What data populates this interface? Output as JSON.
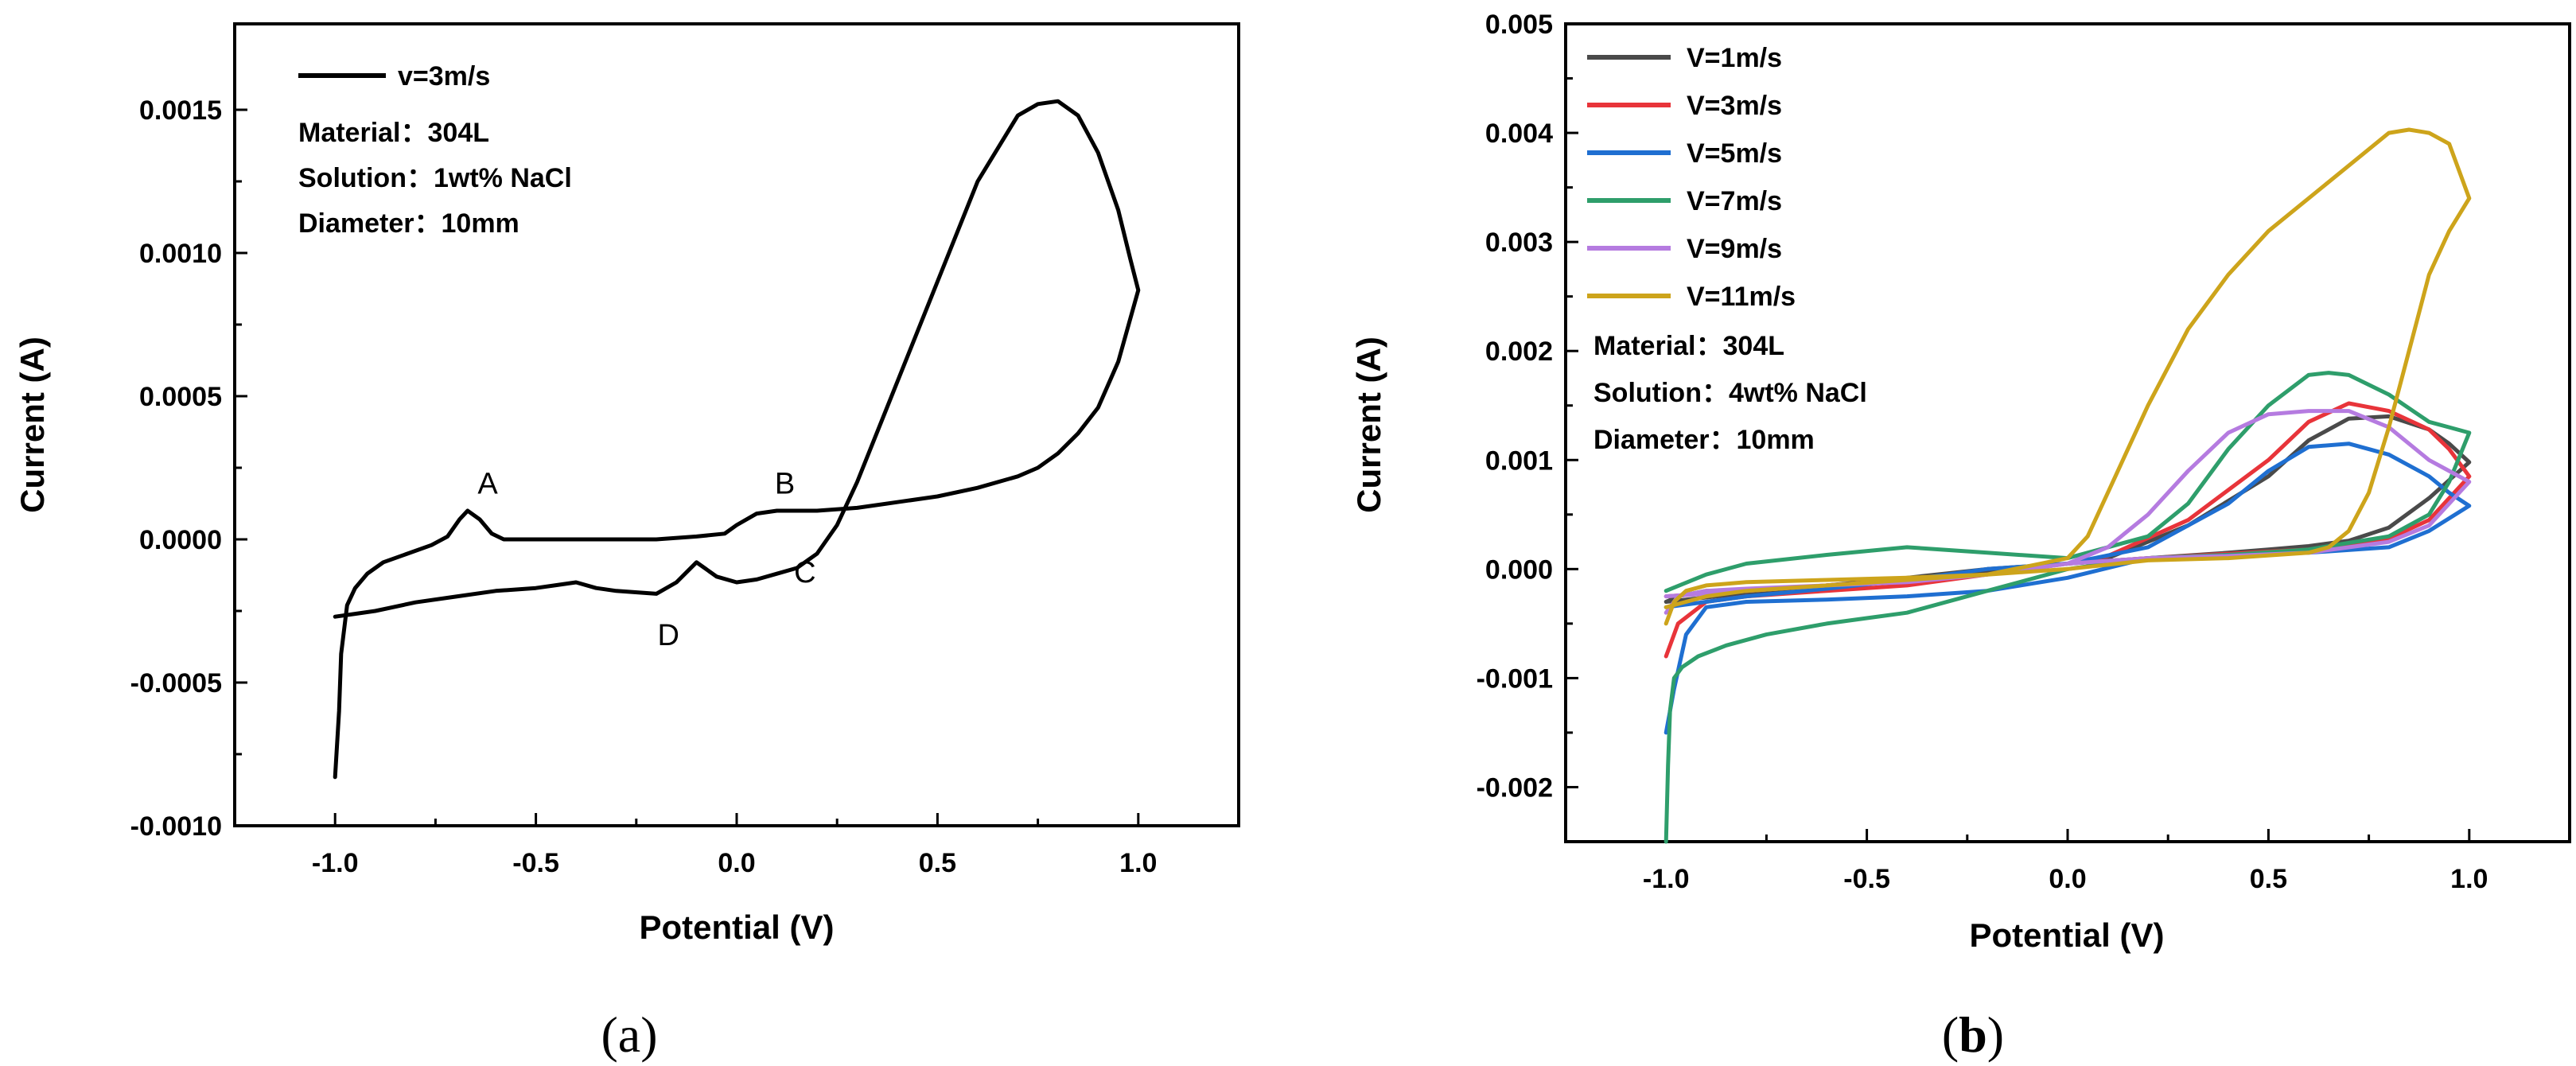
{
  "chart_data": [
    {
      "id": "a",
      "type": "line",
      "panel_label": {
        "open": "(",
        "letter": "a",
        "close": ")"
      },
      "xlabel": "Potential (V)",
      "ylabel": "Current (A)",
      "xlim": [
        -1.25,
        1.25
      ],
      "ylim": [
        -0.001,
        0.0018
      ],
      "xticks": [
        -1.0,
        -0.5,
        0.0,
        0.5,
        1.0
      ],
      "xtick_labels": [
        "-1.0",
        "-0.5",
        "0.0",
        "0.5",
        "1.0"
      ],
      "yticks": [
        -0.001,
        -0.0005,
        0.0,
        0.0005,
        0.001,
        0.0015
      ],
      "ytick_labels": [
        "-0.0010",
        "-0.0005",
        "0.0000",
        "0.0005",
        "0.0010",
        "0.0015"
      ],
      "legend_position": "top-left",
      "series": [
        {
          "name": "v=3m/s",
          "color": "#000000",
          "x": [
            -1.0,
            -0.99,
            -0.985,
            -0.97,
            -0.95,
            -0.92,
            -0.88,
            -0.82,
            -0.76,
            -0.72,
            -0.69,
            -0.67,
            -0.64,
            -0.61,
            -0.58,
            -0.55,
            -0.5,
            -0.4,
            -0.3,
            -0.2,
            -0.1,
            -0.03,
            0.0,
            0.05,
            0.1,
            0.15,
            0.2,
            0.3,
            0.4,
            0.5,
            0.6,
            0.7,
            0.75,
            0.8,
            0.85,
            0.9,
            0.95,
            1.0,
            0.98,
            0.95,
            0.9,
            0.85,
            0.8,
            0.75,
            0.7,
            0.6,
            0.5,
            0.4,
            0.3,
            0.25,
            0.2,
            0.15,
            0.1,
            0.05,
            0.0,
            -0.05,
            -0.1,
            -0.15,
            -0.2,
            -0.3,
            -0.35,
            -0.4,
            -0.45,
            -0.5,
            -0.6,
            -0.7,
            -0.8,
            -0.9,
            -0.95,
            -1.0
          ],
          "y": [
            -0.00083,
            -0.0006,
            -0.0004,
            -0.00023,
            -0.00017,
            -0.00012,
            -8e-05,
            -5e-05,
            -2e-05,
            1e-05,
            7e-05,
            0.0001,
            7e-05,
            2e-05,
            0.0,
            0.0,
            0.0,
            0.0,
            0.0,
            0.0,
            1e-05,
            2e-05,
            5e-05,
            9e-05,
            0.0001,
            0.0001,
            0.0001,
            0.00011,
            0.00013,
            0.00015,
            0.00018,
            0.00022,
            0.00025,
            0.0003,
            0.00037,
            0.00046,
            0.00062,
            0.00087,
            0.00098,
            0.00115,
            0.00135,
            0.00148,
            0.00153,
            0.00152,
            0.00148,
            0.00125,
            0.0009,
            0.00055,
            0.0002,
            5e-05,
            -5e-05,
            -0.0001,
            -0.00012,
            -0.00014,
            -0.00015,
            -0.00013,
            -8e-05,
            -0.00015,
            -0.00019,
            -0.00018,
            -0.00017,
            -0.00015,
            -0.00016,
            -0.00017,
            -0.00018,
            -0.0002,
            -0.00022,
            -0.00025,
            -0.00026,
            -0.00027
          ]
        }
      ],
      "annotations": [
        {
          "text": "A",
          "x": -0.62,
          "y": 0.00016
        },
        {
          "text": "B",
          "x": 0.12,
          "y": 0.00016
        },
        {
          "text": "C",
          "x": 0.17,
          "y": -0.00015
        },
        {
          "text": "D",
          "x": -0.17,
          "y": -0.00037
        }
      ],
      "info_lines": [
        "Material：304L",
        "Solution：1wt% NaCl",
        "Diameter：10mm"
      ]
    },
    {
      "id": "b",
      "type": "line",
      "panel_label": {
        "open": "(",
        "letter": "b",
        "close": ")"
      },
      "xlabel": "Potential (V)",
      "ylabel": "Current (A)",
      "xlim": [
        -1.25,
        1.25
      ],
      "ylim": [
        -0.0025,
        0.005
      ],
      "xticks": [
        -1.0,
        -0.5,
        0.0,
        0.5,
        1.0
      ],
      "xtick_labels": [
        "-1.0",
        "-0.5",
        "0.0",
        "0.5",
        "1.0"
      ],
      "yticks": [
        -0.002,
        -0.001,
        0.0,
        0.001,
        0.002,
        0.003,
        0.004,
        0.005
      ],
      "ytick_labels": [
        "-0.002",
        "-0.001",
        "0.000",
        "0.001",
        "0.002",
        "0.003",
        "0.004",
        "0.005"
      ],
      "legend_position": "top-left",
      "series": [
        {
          "name": "V=1m/s",
          "color": "#4a4a4a",
          "x": [
            -1.0,
            -0.97,
            -0.9,
            -0.8,
            -0.6,
            -0.4,
            -0.2,
            0.0,
            0.2,
            0.4,
            0.5,
            0.6,
            0.7,
            0.8,
            0.9,
            1.0,
            0.95,
            0.9,
            0.8,
            0.7,
            0.6,
            0.5,
            0.3,
            0.1,
            0.0,
            -0.2,
            -0.4,
            -0.6,
            -0.8,
            -1.0
          ],
          "y": [
            -0.0003,
            -0.00025,
            -0.0002,
            -0.0002,
            -0.00015,
            -0.0001,
            -2e-05,
            5e-05,
            0.0001,
            0.00015,
            0.00018,
            0.00021,
            0.00026,
            0.00038,
            0.00065,
            0.00098,
            0.00115,
            0.00128,
            0.0014,
            0.00138,
            0.00118,
            0.00085,
            0.0004,
            0.0001,
            5e-05,
            0.0,
            -8e-05,
            -0.00015,
            -0.00022,
            -0.0003
          ]
        },
        {
          "name": "V=3m/s",
          "color": "#e8343a",
          "x": [
            -1.0,
            -0.97,
            -0.9,
            -0.8,
            -0.6,
            -0.4,
            -0.2,
            0.0,
            0.2,
            0.4,
            0.5,
            0.6,
            0.7,
            0.8,
            0.9,
            1.0,
            0.95,
            0.9,
            0.8,
            0.7,
            0.6,
            0.5,
            0.3,
            0.1,
            0.0,
            -0.2,
            -0.4,
            -0.6,
            -0.8,
            -1.0
          ],
          "y": [
            -0.0008,
            -0.0005,
            -0.0003,
            -0.00025,
            -0.0002,
            -0.00015,
            -5e-05,
            5e-05,
            0.0001,
            0.00014,
            0.00016,
            0.00018,
            0.00022,
            0.00028,
            0.00045,
            0.00085,
            0.0011,
            0.00128,
            0.00145,
            0.00152,
            0.00135,
            0.001,
            0.00045,
            0.00012,
            5e-05,
            -5e-05,
            -0.0001,
            -0.00015,
            -0.0002,
            -0.00025
          ]
        },
        {
          "name": "V=5m/s",
          "color": "#1f6fd1",
          "x": [
            -1.0,
            -0.98,
            -0.95,
            -0.9,
            -0.8,
            -0.6,
            -0.4,
            -0.2,
            0.0,
            0.2,
            0.4,
            0.6,
            0.8,
            0.9,
            1.0,
            0.95,
            0.9,
            0.8,
            0.7,
            0.6,
            0.5,
            0.4,
            0.2,
            0.0,
            -0.2,
            -0.4,
            -0.6,
            -0.8,
            -0.9,
            -1.0
          ],
          "y": [
            -0.0015,
            -0.0011,
            -0.0006,
            -0.00035,
            -0.0003,
            -0.00028,
            -0.00025,
            -0.0002,
            -8e-05,
            0.0001,
            0.00013,
            0.00015,
            0.0002,
            0.00035,
            0.00058,
            0.0007,
            0.00085,
            0.00105,
            0.00115,
            0.00112,
            0.0009,
            0.0006,
            0.0002,
            5e-05,
            0.0,
            -0.0001,
            -0.00018,
            -0.00025,
            -0.0003,
            -0.00035
          ]
        },
        {
          "name": "V=7m/s",
          "color": "#2e9e6b",
          "x": [
            -1.0,
            -0.995,
            -0.99,
            -0.98,
            -0.96,
            -0.92,
            -0.85,
            -0.75,
            -0.6,
            -0.5,
            -0.4,
            -0.2,
            0.0,
            0.2,
            0.4,
            0.6,
            0.8,
            0.9,
            0.95,
            1.0,
            0.95,
            0.9,
            0.8,
            0.7,
            0.65,
            0.6,
            0.5,
            0.4,
            0.3,
            0.2,
            0.1,
            0.0,
            -0.2,
            -0.4,
            -0.6,
            -0.8,
            -0.9,
            -1.0
          ],
          "y": [
            -0.0025,
            -0.0018,
            -0.0013,
            -0.001,
            -0.0009,
            -0.0008,
            -0.0007,
            -0.0006,
            -0.0005,
            -0.00045,
            -0.0004,
            -0.0002,
            0.0,
            0.0001,
            0.00013,
            0.00018,
            0.0003,
            0.0005,
            0.0008,
            0.00125,
            0.0013,
            0.00135,
            0.0016,
            0.00178,
            0.0018,
            0.00178,
            0.0015,
            0.0011,
            0.0006,
            0.0003,
            0.0002,
            0.0001,
            0.00015,
            0.0002,
            0.00013,
            5e-05,
            -5e-05,
            -0.0002
          ]
        },
        {
          "name": "V=9m/s",
          "color": "#b57be0",
          "x": [
            -1.0,
            -0.97,
            -0.9,
            -0.8,
            -0.6,
            -0.4,
            -0.2,
            0.0,
            0.2,
            0.4,
            0.6,
            0.8,
            0.9,
            1.0,
            0.95,
            0.9,
            0.8,
            0.7,
            0.6,
            0.5,
            0.4,
            0.3,
            0.2,
            0.1,
            0.0,
            -0.2,
            -0.4,
            -0.6,
            -0.8,
            -1.0
          ],
          "y": [
            -0.0004,
            -0.00025,
            -0.0002,
            -0.00018,
            -0.00015,
            -0.00012,
            -5e-05,
            5e-05,
            0.0001,
            0.00012,
            0.00015,
            0.00025,
            0.0004,
            0.0008,
            0.0009,
            0.001,
            0.0013,
            0.00145,
            0.00145,
            0.00142,
            0.00125,
            0.0009,
            0.0005,
            0.0002,
            5e-05,
            -5e-05,
            -0.0001,
            -0.00015,
            -0.0002,
            -0.00025
          ]
        },
        {
          "name": "V=11m/s",
          "color": "#cda41b",
          "x": [
            -1.0,
            -0.98,
            -0.95,
            -0.9,
            -0.8,
            -0.6,
            -0.4,
            -0.2,
            0.0,
            0.2,
            0.4,
            0.6,
            0.65,
            0.7,
            0.75,
            0.8,
            0.85,
            0.9,
            0.95,
            1.0,
            1.0,
            0.95,
            0.9,
            0.85,
            0.8,
            0.7,
            0.6,
            0.5,
            0.4,
            0.3,
            0.2,
            0.1,
            0.05,
            0.0,
            -0.2,
            -0.4,
            -0.6,
            -0.8,
            -0.9,
            -0.95,
            -1.0
          ],
          "y": [
            -0.0005,
            -0.0003,
            -0.0002,
            -0.00015,
            -0.00012,
            -0.0001,
            -8e-05,
            -5e-05,
            0.0,
            8e-05,
            0.0001,
            0.00015,
            0.0002,
            0.00035,
            0.0007,
            0.0013,
            0.002,
            0.0027,
            0.0031,
            0.0034,
            0.0034,
            0.0039,
            0.004,
            0.00403,
            0.004,
            0.0037,
            0.0034,
            0.0031,
            0.0027,
            0.0022,
            0.0015,
            0.0007,
            0.0003,
            0.0001,
            -5e-05,
            -0.0001,
            -0.00015,
            -0.0002,
            -0.00025,
            -0.0003,
            -0.00035
          ]
        }
      ],
      "info_lines": [
        "Material：304L",
        "Solution：4wt% NaCl",
        "Diameter：10mm"
      ]
    }
  ]
}
